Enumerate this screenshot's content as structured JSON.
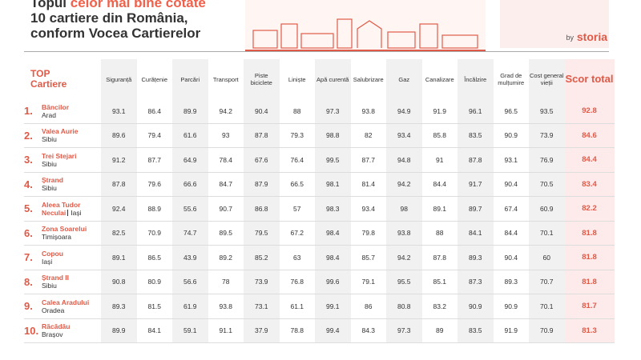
{
  "header": {
    "title": [
      "Topul",
      "celor mai bine cotate",
      "10 cartiere din România,",
      "conform Vocea Cartierelor"
    ],
    "logo": {
      "by": "by",
      "brand": "storia"
    }
  },
  "table": {
    "top": "TOP",
    "first_column": "Cartiere",
    "columns": [
      "Siguranță",
      "Curățenie",
      "Parcări",
      "Transport",
      "Piste biciclete",
      "Liniște",
      "Apă curentă",
      "Salubrizare",
      "Gaz",
      "Canalizare",
      "Încălzire",
      "Grad de mulțumire",
      "Cost general vieții",
      "Scor total"
    ],
    "rows": [
      {
        "rank": "1.",
        "name": "Băncilor",
        "city": "Arad",
        "values": [
          93.1,
          86.4,
          89.9,
          94.2,
          90.4,
          88,
          97.3,
          93.8,
          94.9,
          91.9,
          96.1,
          96.5,
          93.5,
          92.8
        ]
      },
      {
        "rank": "2.",
        "name": "Valea Aurie",
        "city": "Sibiu",
        "values": [
          89.6,
          79.4,
          61.6,
          93,
          87.8,
          79.3,
          98.8,
          82,
          93.4,
          85.8,
          83.5,
          90.9,
          73.9,
          84.6
        ]
      },
      {
        "rank": "3.",
        "name": "Trei Stejari",
        "city": "Sibiu",
        "values": [
          91.2,
          87.7,
          64.9,
          78.4,
          67.6,
          76.4,
          99.5,
          87.7,
          94.8,
          91,
          87.8,
          93.1,
          76.9,
          84.4
        ]
      },
      {
        "rank": "4.",
        "name": "Ștrand",
        "city": "Sibiu",
        "values": [
          87.8,
          79.6,
          66.6,
          84.7,
          87.9,
          66.5,
          98.1,
          81.4,
          94.2,
          84.4,
          91.7,
          90.4,
          70.5,
          83.4
        ]
      },
      {
        "rank": "5.",
        "name": "Aleea Tudor Neculai",
        "city": "Iași",
        "values": [
          92.4,
          88.9,
          55.6,
          90.7,
          86.8,
          57,
          98.3,
          93.4,
          98,
          89.1,
          89.7,
          67.4,
          60.9,
          82.2
        ]
      },
      {
        "rank": "6.",
        "name": "Zona Soarelui",
        "city": "Timișoara",
        "values": [
          82.5,
          70.9,
          74.7,
          89.5,
          79.5,
          67.2,
          98.4,
          79.8,
          93.8,
          88,
          84.1,
          84.4,
          70.1,
          81.8
        ]
      },
      {
        "rank": "7.",
        "name": "Copou",
        "city": "Iași",
        "values": [
          89.1,
          86.5,
          43.9,
          89.2,
          85.2,
          63,
          98.4,
          85.7,
          94.2,
          87.8,
          89.3,
          90.4,
          60,
          81.8
        ]
      },
      {
        "rank": "8.",
        "name": "Ștrand II",
        "city": "Sibiu",
        "values": [
          90.8,
          80.9,
          56.6,
          78,
          73.9,
          76.8,
          99.6,
          79.1,
          95.5,
          85.1,
          87.3,
          89.3,
          70.7,
          81.8
        ]
      },
      {
        "rank": "9.",
        "name": "Calea Aradului",
        "city": "Oradea",
        "values": [
          89.3,
          81.5,
          61.9,
          93.8,
          73.1,
          61.1,
          99.1,
          86,
          80.8,
          83.2,
          90.9,
          90.9,
          70.1,
          81.7
        ]
      },
      {
        "rank": "10.",
        "name": "Răcădău",
        "city": "Brașov",
        "values": [
          89.9,
          84.1,
          59.1,
          91.1,
          37.9,
          78.8,
          99.4,
          84.3,
          97.3,
          89,
          83.5,
          91.9,
          70.9,
          81.3
        ]
      }
    ]
  }
}
